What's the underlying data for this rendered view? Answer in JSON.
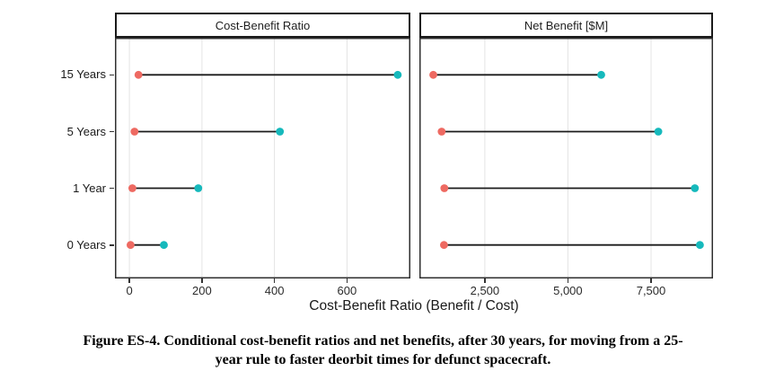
{
  "colors": {
    "low_dot": "#EE6A62",
    "high_dot": "#16B9BC",
    "segment": "#1B1B1B",
    "gridline": "#E4E4E4",
    "panel_border": "#2F2F2F",
    "header_border": "#1A1A1A",
    "text": "#1F1F1F"
  },
  "caption": {
    "lines": [
      "Figure ES-4. Conditional cost-benefit ratios and net benefits, after 30 years, for moving from a 25-",
      "year rule to faster deorbit times for defunct spacecraft."
    ]
  },
  "chart_data": {
    "type": "scatter",
    "subtype": "dumbbell",
    "orientation": "horizontal",
    "grid": "vertical-major-only",
    "legend": "none",
    "categories": [
      "15 Years",
      "5 Years",
      "1 Year",
      "0 Years"
    ],
    "xlabel": "Cost-Benefit Ratio (Benefit / Cost)",
    "point_meaning": {
      "low": "red-dot (range start)",
      "high": "teal-dot (range end)"
    },
    "panels": [
      {
        "title": "Cost-Benefit Ratio",
        "x_domain": [
          -40,
          775
        ],
        "x_ticks": [
          0,
          200,
          400,
          600
        ],
        "x_tick_labels": [
          "0",
          "200",
          "400",
          "600"
        ],
        "rows": [
          {
            "category": "15 Years",
            "low": 25,
            "high": 740
          },
          {
            "category": "5 Years",
            "low": 14,
            "high": 415
          },
          {
            "category": "1 Year",
            "low": 8,
            "high": 190
          },
          {
            "category": "0 Years",
            "low": 3,
            "high": 95
          }
        ]
      },
      {
        "title": "Net Benefit [$M]",
        "x_domain": [
          530,
          9365
        ],
        "x_ticks": [
          2500,
          5000,
          7500
        ],
        "x_tick_labels": [
          "2,500",
          "5,000",
          "7,500"
        ],
        "rows": [
          {
            "category": "15 Years",
            "low": 950,
            "high": 6000
          },
          {
            "category": "5 Years",
            "low": 1200,
            "high": 7720
          },
          {
            "category": "1 Year",
            "low": 1280,
            "high": 8820
          },
          {
            "category": "0 Years",
            "low": 1270,
            "high": 8970
          }
        ]
      }
    ]
  }
}
